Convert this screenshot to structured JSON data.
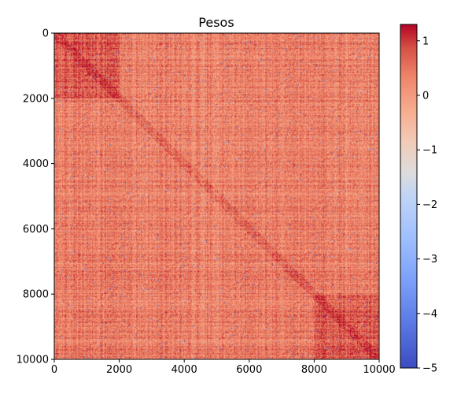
{
  "chart_data": {
    "type": "heatmap",
    "title": "Pesos",
    "xlabel": "",
    "ylabel": "",
    "xlim": [
      0,
      10000
    ],
    "ylim": [
      10000,
      0
    ],
    "x_ticks": [
      0,
      2000,
      4000,
      6000,
      8000,
      10000
    ],
    "y_ticks": [
      0,
      2000,
      4000,
      6000,
      8000,
      10000
    ],
    "x_tick_labels": [
      "0",
      "2000",
      "4000",
      "6000",
      "8000",
      "10000"
    ],
    "y_tick_labels": [
      "0",
      "2000",
      "4000",
      "6000",
      "8000",
      "10000"
    ],
    "colormap": "coolwarm",
    "colorbar": {
      "vmin": -5,
      "vmax": 1.3,
      "ticks": [
        1,
        0,
        -1,
        -2,
        -3,
        -4,
        -5
      ],
      "tick_labels": [
        "1",
        "0",
        "−1",
        "−2",
        "−3",
        "−4",
        "−5"
      ]
    },
    "matrix_size": [
      10000,
      10000
    ],
    "typical_value_range": [
      -1,
      1.3
    ],
    "outlier_value": -5,
    "high_value_regions": [
      {
        "x_range": [
          0,
          2000
        ],
        "y_range": [
          0,
          2000
        ],
        "level": "high"
      },
      {
        "x_range": [
          8000,
          10000
        ],
        "y_range": [
          8000,
          10000
        ],
        "level": "high"
      }
    ],
    "colors": {
      "low": "#3b4cc0",
      "mid": "#dddddd",
      "high": "#b40426"
    }
  }
}
